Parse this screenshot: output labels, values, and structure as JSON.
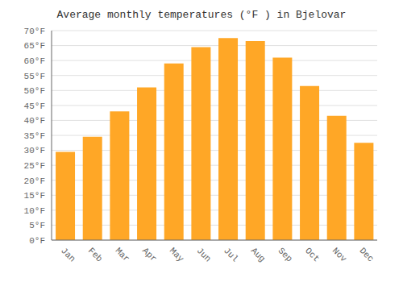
{
  "chart_data": {
    "type": "bar",
    "title": "Average monthly temperatures (°F ) in Bjelovar",
    "categories": [
      "Jan",
      "Feb",
      "Mar",
      "Apr",
      "May",
      "Jun",
      "Jul",
      "Aug",
      "Sep",
      "Oct",
      "Nov",
      "Dec"
    ],
    "values": [
      29.5,
      34.5,
      43.0,
      51.0,
      59.0,
      64.5,
      67.5,
      66.5,
      61.0,
      51.5,
      41.5,
      32.5
    ],
    "color": "#FFA726",
    "ylim": [
      0,
      70
    ],
    "yticks": [
      {
        "value": 0,
        "label": "0°F"
      },
      {
        "value": 5,
        "label": "5°F"
      },
      {
        "value": 10,
        "label": "10°F"
      },
      {
        "value": 15,
        "label": "15°F"
      },
      {
        "value": 20,
        "label": "20°F"
      },
      {
        "value": 25,
        "label": "25°F"
      },
      {
        "value": 30,
        "label": "30°F"
      },
      {
        "value": 35,
        "label": "35°F"
      },
      {
        "value": 40,
        "label": "40°F"
      },
      {
        "value": 45,
        "label": "45°F"
      },
      {
        "value": 50,
        "label": "50°F"
      },
      {
        "value": 55,
        "label": "55°F"
      },
      {
        "value": 60,
        "label": "60°F"
      },
      {
        "value": 65,
        "label": "65°F"
      },
      {
        "value": 70,
        "label": "70°F"
      }
    ],
    "grid": true
  }
}
